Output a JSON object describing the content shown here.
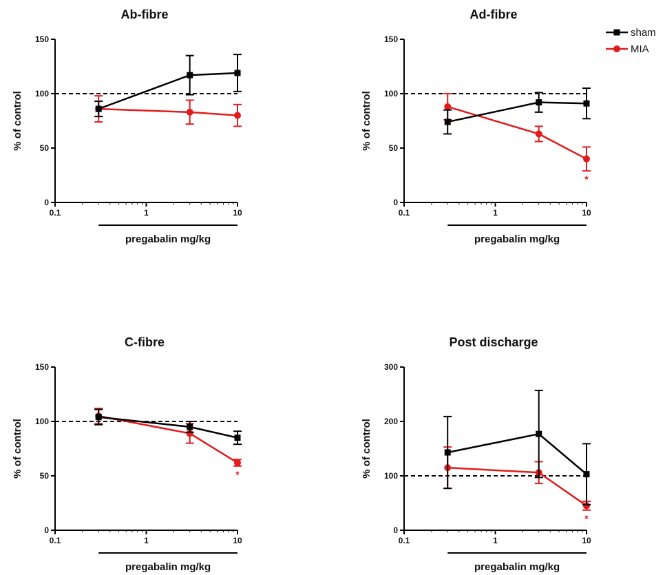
{
  "legend": [
    {
      "name": "sham",
      "color": "#000000",
      "marker": "square"
    },
    {
      "name": "MIA",
      "color": "#e31b1b",
      "marker": "circle"
    }
  ],
  "chart_data": [
    {
      "type": "line",
      "title": "Ab-fibre",
      "xlabel": "pregabalin mg/kg",
      "ylabel": "% of control",
      "x_scale": "log",
      "xlim": [
        0.1,
        10
      ],
      "xticks": [
        "0.1",
        "1",
        "10"
      ],
      "ylim": [
        0,
        150
      ],
      "yticks": [
        "0",
        "50",
        "100",
        "150"
      ],
      "reference_line": 100,
      "x": [
        0.3,
        3,
        10
      ],
      "series": [
        {
          "name": "sham",
          "values": [
            86,
            117,
            119
          ],
          "errors": [
            7,
            18,
            17
          ],
          "significant": [
            false,
            false,
            false
          ]
        },
        {
          "name": "MIA",
          "values": [
            86,
            83,
            80
          ],
          "errors": [
            12,
            11,
            10
          ],
          "significant": [
            false,
            false,
            false
          ]
        }
      ]
    },
    {
      "type": "line",
      "title": "Ad-fibre",
      "xlabel": "pregabalin mg/kg",
      "ylabel": "% of control",
      "x_scale": "log",
      "xlim": [
        0.1,
        10
      ],
      "xticks": [
        "0.1",
        "1",
        "10"
      ],
      "ylim": [
        0,
        150
      ],
      "yticks": [
        "0",
        "50",
        "100",
        "150"
      ],
      "reference_line": 100,
      "x": [
        0.3,
        3,
        10
      ],
      "series": [
        {
          "name": "sham",
          "values": [
            74,
            92,
            91
          ],
          "errors": [
            11,
            9,
            14
          ],
          "significant": [
            false,
            false,
            false
          ]
        },
        {
          "name": "MIA",
          "values": [
            88,
            63,
            40
          ],
          "errors": [
            12,
            7,
            11
          ],
          "significant": [
            false,
            false,
            true
          ]
        }
      ]
    },
    {
      "type": "line",
      "title": "C-fibre",
      "xlabel": "pregabalin mg/kg",
      "ylabel": "% of control",
      "x_scale": "log",
      "xlim": [
        0.1,
        10
      ],
      "xticks": [
        "0.1",
        "1",
        "10"
      ],
      "ylim": [
        0,
        150
      ],
      "yticks": [
        "0",
        "50",
        "100",
        "150"
      ],
      "reference_line": 100,
      "x": [
        0.3,
        3,
        10
      ],
      "series": [
        {
          "name": "sham",
          "values": [
            104,
            95,
            85
          ],
          "errors": [
            7,
            5,
            6
          ],
          "significant": [
            false,
            false,
            false
          ]
        },
        {
          "name": "MIA",
          "values": [
            105,
            89,
            62
          ],
          "errors": [
            7,
            9,
            3
          ],
          "significant": [
            false,
            false,
            true
          ]
        }
      ]
    },
    {
      "type": "line",
      "title": "Post discharge",
      "xlabel": "pregabalin mg/kg",
      "ylabel": "% of control",
      "x_scale": "log",
      "xlim": [
        0.1,
        10
      ],
      "xticks": [
        "0.1",
        "1",
        "10"
      ],
      "ylim": [
        0,
        300
      ],
      "yticks": [
        "0",
        "100",
        "200",
        "300"
      ],
      "reference_line": 100,
      "x": [
        0.3,
        3,
        10
      ],
      "series": [
        {
          "name": "sham",
          "values": [
            143,
            177,
            103
          ],
          "errors": [
            66,
            80,
            56
          ],
          "significant": [
            false,
            false,
            false
          ]
        },
        {
          "name": "MIA",
          "values": [
            115,
            106,
            45
          ],
          "errors": [
            38,
            20,
            8
          ],
          "significant": [
            false,
            false,
            true
          ]
        }
      ]
    }
  ],
  "significance_mark": "*"
}
